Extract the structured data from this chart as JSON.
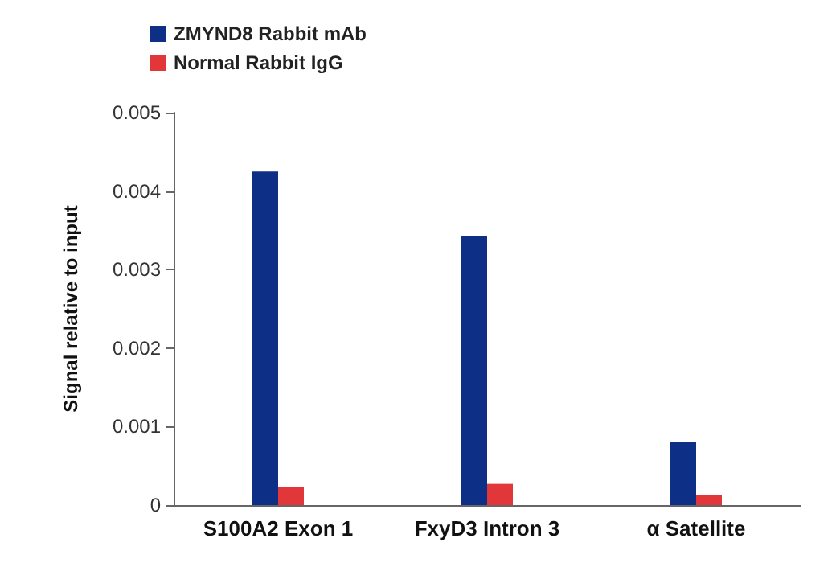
{
  "chart_data": {
    "type": "bar",
    "ylabel": "Signal relative to input",
    "categories": [
      "S100A2 Exon 1",
      "FxyD3 Intron 3",
      "α Satellite"
    ],
    "series": [
      {
        "name": "ZMYND8 Rabbit mAb",
        "color": "#0d2f85",
        "values": [
          0.00425,
          0.00343,
          0.0008
        ]
      },
      {
        "name": "Normal Rabbit IgG",
        "color": "#e2373a",
        "values": [
          0.00023,
          0.00027,
          0.00013
        ]
      }
    ],
    "ylim": [
      0,
      0.005
    ],
    "yticks": [
      0,
      0.001,
      0.002,
      0.003,
      0.004,
      0.005
    ],
    "grid": false,
    "legend": "top left"
  }
}
